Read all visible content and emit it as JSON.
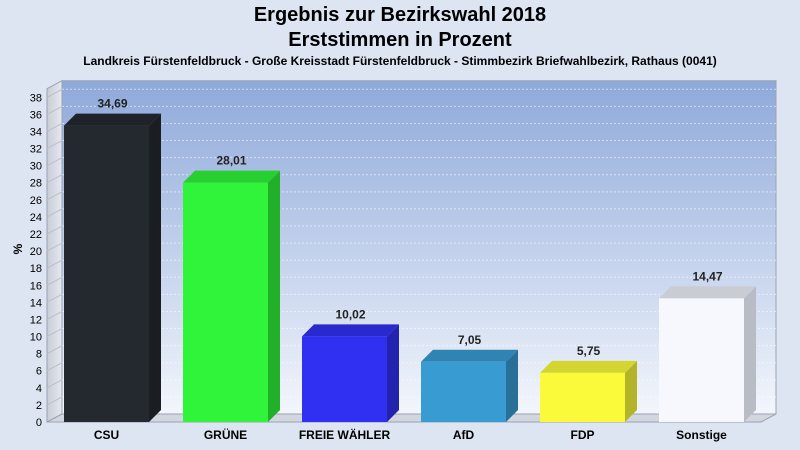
{
  "chart_data": {
    "type": "bar",
    "title": "Ergebnis zur Bezirkswahl 2018",
    "subtitle": "Erststimmen in Prozent",
    "caption": "Landkreis Fürstenfeldbruck - Große Kreisstadt Fürstenfeldbruck - Stimmbezirk Briefwahlbezirk, Rathaus (0041)",
    "ylabel": "%",
    "ylim": [
      0,
      39
    ],
    "yticks": [
      0,
      2,
      4,
      6,
      8,
      10,
      12,
      14,
      16,
      18,
      20,
      22,
      24,
      26,
      28,
      30,
      32,
      34,
      36,
      38
    ],
    "grid": true,
    "categories": [
      "CSU",
      "GRÜNE",
      "FREIE WÄHLER",
      "AfD",
      "FDP",
      "Sonstige"
    ],
    "values": [
      34.69,
      28.01,
      10.02,
      7.05,
      5.75,
      14.47
    ],
    "value_labels": [
      "34,69",
      "28,01",
      "10,02",
      "7,05",
      "5,75",
      "14,47"
    ],
    "colors": [
      "#24282f",
      "#2ff43a",
      "#3030f2",
      "#389bd2",
      "#fafa3a",
      "#f6f8fe"
    ]
  }
}
